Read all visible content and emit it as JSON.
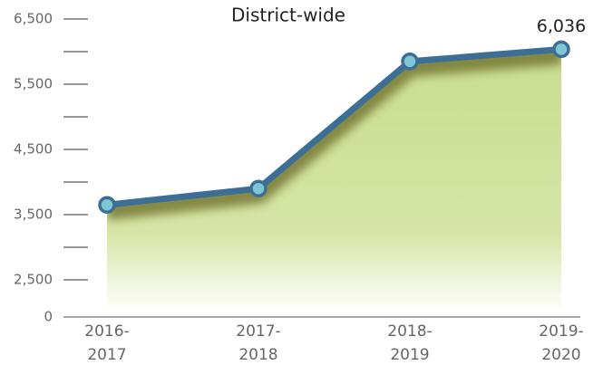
{
  "chart_data": {
    "type": "area_line",
    "title": "District-wide",
    "categories": [
      [
        "2016-",
        "2017"
      ],
      [
        "2017-",
        "2018"
      ],
      [
        "2018-",
        "2019"
      ],
      [
        "2019-",
        "2020"
      ]
    ],
    "values": [
      3650,
      3900,
      5850,
      6036
    ],
    "value_labels": [
      null,
      null,
      null,
      "6,036"
    ],
    "line_color": "#3d6f96",
    "marker_color": "#7fc6d4",
    "area_color": "#c9dc8f",
    "ylim": [
      2000,
      6500
    ],
    "yticks": [
      {
        "value": 2500,
        "label": "2,500"
      },
      {
        "value": 3500,
        "label": "3,500"
      },
      {
        "value": 4500,
        "label": "4,500"
      },
      {
        "value": 5500,
        "label": "5,500"
      },
      {
        "value": 6500,
        "label": "6,500"
      }
    ],
    "yminor": [
      3000,
      4000,
      5000,
      6000
    ],
    "y_floor_label": "0"
  }
}
